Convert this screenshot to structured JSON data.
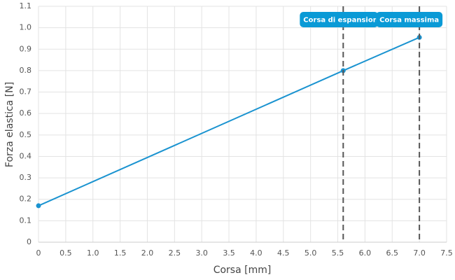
{
  "chart_data": {
    "type": "line",
    "x_label": "Corsa [mm]",
    "y_label": "Forza elastica [N]",
    "series": [
      {
        "name": "Forza elastica",
        "color": "#1a93d0",
        "x": [
          0,
          5.6,
          7.0
        ],
        "values": [
          0.17,
          0.8,
          0.955
        ]
      }
    ],
    "xlim": [
      0,
      7.5
    ],
    "xticks": [
      0,
      0.5,
      {
        "value": 1,
        "label": "1.0"
      },
      1.5,
      {
        "value": 2,
        "label": "2.0"
      },
      2.5,
      {
        "value": 3,
        "label": "3.0"
      },
      3.5,
      {
        "value": 4,
        "label": "4.0"
      },
      4.5,
      {
        "value": 5,
        "label": "5.0"
      },
      5.5,
      {
        "value": 6,
        "label": "6.0"
      },
      6.5,
      {
        "value": 7,
        "label": "7.0"
      },
      7.5
    ],
    "ylim": [
      0,
      1.1
    ],
    "yticks": [
      0,
      0.1,
      0.2,
      0.3,
      0.4,
      0.5,
      0.6,
      0.7,
      0.8,
      0.9,
      {
        "value": 1,
        "label": "1.0"
      },
      1.1
    ],
    "grid": true,
    "annotations": [
      {
        "x": 5.6,
        "label": "Corsa di espansion"
      },
      {
        "x": 7.0,
        "label": "Corsa massima"
      }
    ],
    "annotation_color": "#0a9ad6"
  }
}
